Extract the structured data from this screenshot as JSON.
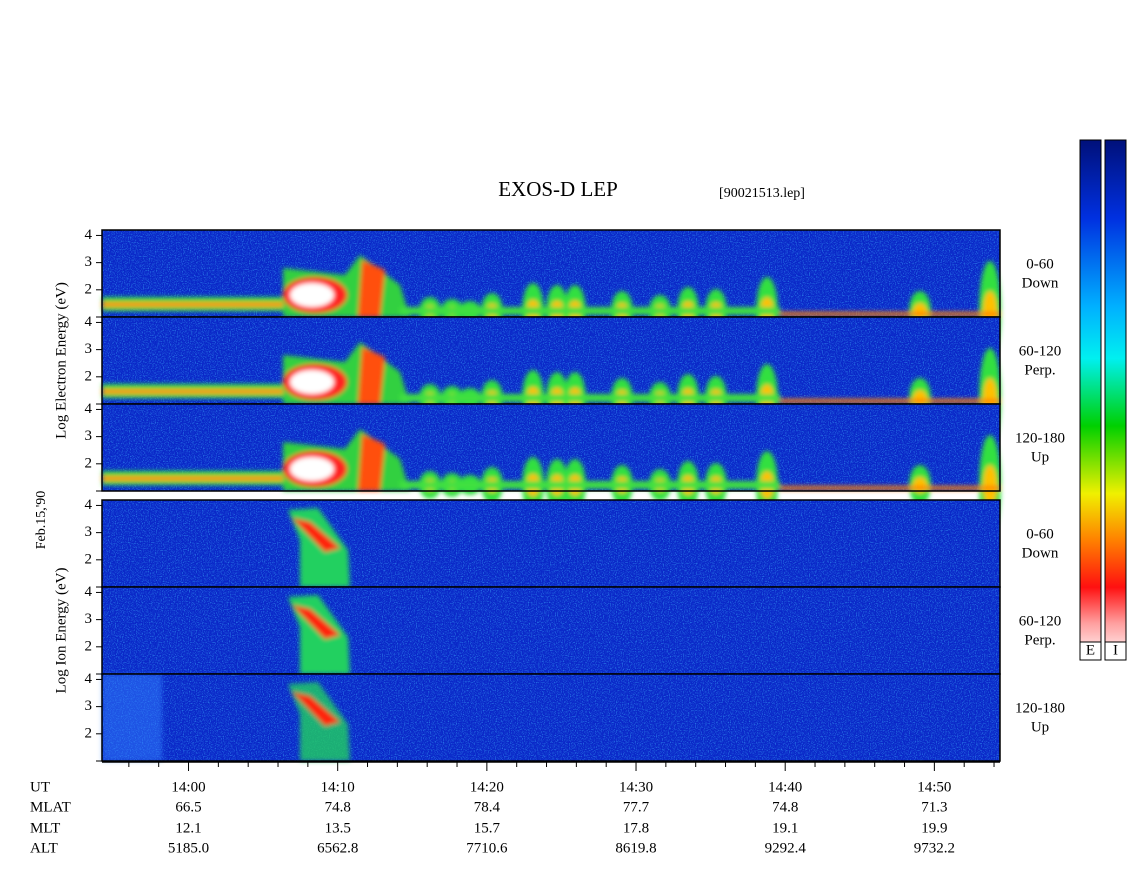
{
  "title": "EXOS-D LEP",
  "file": "[90021513.lep]",
  "date": "Feb.15,'90",
  "yaxis": {
    "ylim": [
      1,
      4.2
    ],
    "yticks": [
      2,
      3,
      4
    ]
  },
  "groups": [
    {
      "label": "Log Electron Energy (eV)",
      "panels": [
        {
          "pitch": "0-60",
          "direction": "Down"
        },
        {
          "pitch": "60-120",
          "direction": "Perp."
        },
        {
          "pitch": "120-180",
          "direction": "Up"
        }
      ]
    },
    {
      "label": "Log Ion Energy (eV)",
      "panels": [
        {
          "pitch": "0-60",
          "direction": "Down"
        },
        {
          "pitch": "60-120",
          "direction": "Perp."
        },
        {
          "pitch": "120-180",
          "direction": "Up"
        }
      ]
    }
  ],
  "xaxis": {
    "xlim": [
      834.2,
      894.4
    ],
    "xticks": [
      {
        "value": 840,
        "label": "14:00"
      },
      {
        "value": 850,
        "label": "14:10"
      },
      {
        "value": 860,
        "label": "14:20"
      },
      {
        "value": 870,
        "label": "14:30"
      },
      {
        "value": 880,
        "label": "14:40"
      },
      {
        "value": 890,
        "label": "14:50"
      }
    ],
    "minor_xticks": [
      836,
      838,
      842,
      844,
      846,
      848,
      852,
      854,
      856,
      858,
      862,
      864,
      866,
      868,
      872,
      874,
      876,
      878,
      882,
      884,
      886,
      888,
      892,
      894
    ]
  },
  "ephemeris": [
    {
      "name": "UT"
    },
    {
      "name": "MLAT",
      "values": [
        "66.5",
        "74.8",
        "78.4",
        "77.7",
        "74.8",
        "71.3"
      ]
    },
    {
      "name": "MLT",
      "values": [
        "12.1",
        "13.5",
        "15.7",
        "17.8",
        "19.1",
        "19.9"
      ]
    },
    {
      "name": "ALT",
      "values": [
        "5185.0",
        "6562.8",
        "7710.6",
        "8619.8",
        "9292.4",
        "9732.2"
      ]
    }
  ],
  "colorbars": [
    "E",
    "I"
  ]
}
